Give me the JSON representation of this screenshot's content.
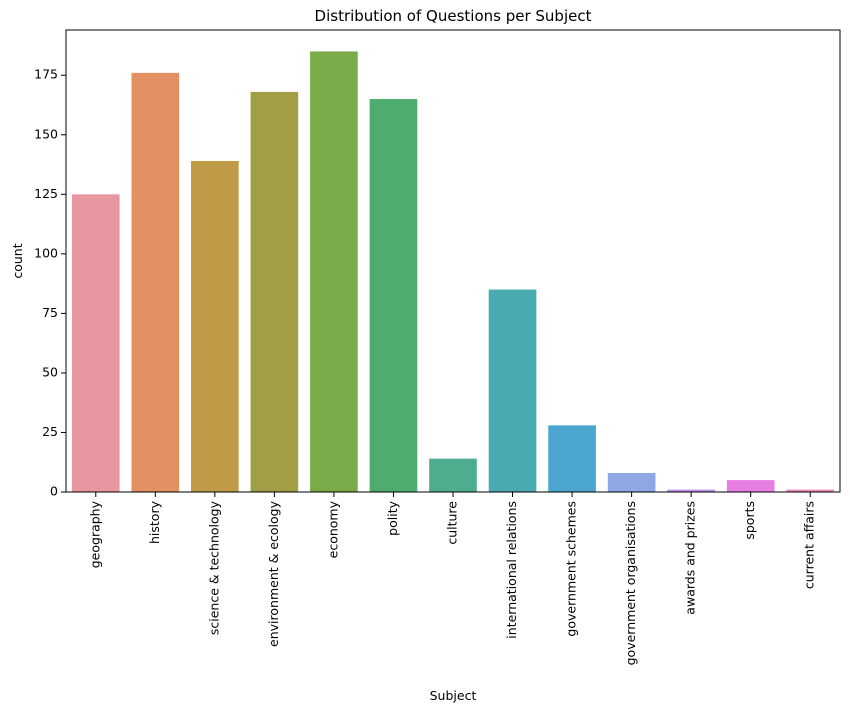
{
  "chart_data": {
    "type": "bar",
    "title": "Distribution of Questions per Subject",
    "xlabel": "Subject",
    "ylabel": "count",
    "categories": [
      "geography",
      "history",
      "science & technology",
      "environment & ecology",
      "economy",
      "polity",
      "culture",
      "international relations",
      "government schemes",
      "government organisations",
      "awards and prizes",
      "sports",
      "current affairs"
    ],
    "values": [
      125,
      176,
      139,
      168,
      185,
      165,
      14,
      85,
      28,
      8,
      1,
      5,
      1
    ],
    "colors": [
      "#e8969f",
      "#e39063",
      "#bf9a47",
      "#a09f45",
      "#7aab48",
      "#4dac6e",
      "#4ead8e",
      "#4aaab1",
      "#4aa6cf",
      "#8ea8e6",
      "#ba8ee8",
      "#e77ee2",
      "#ea8cb9"
    ],
    "yticks": [
      0,
      25,
      50,
      75,
      100,
      125,
      150,
      175
    ],
    "ylim": [
      0,
      194
    ],
    "grid": false,
    "legend": false
  }
}
